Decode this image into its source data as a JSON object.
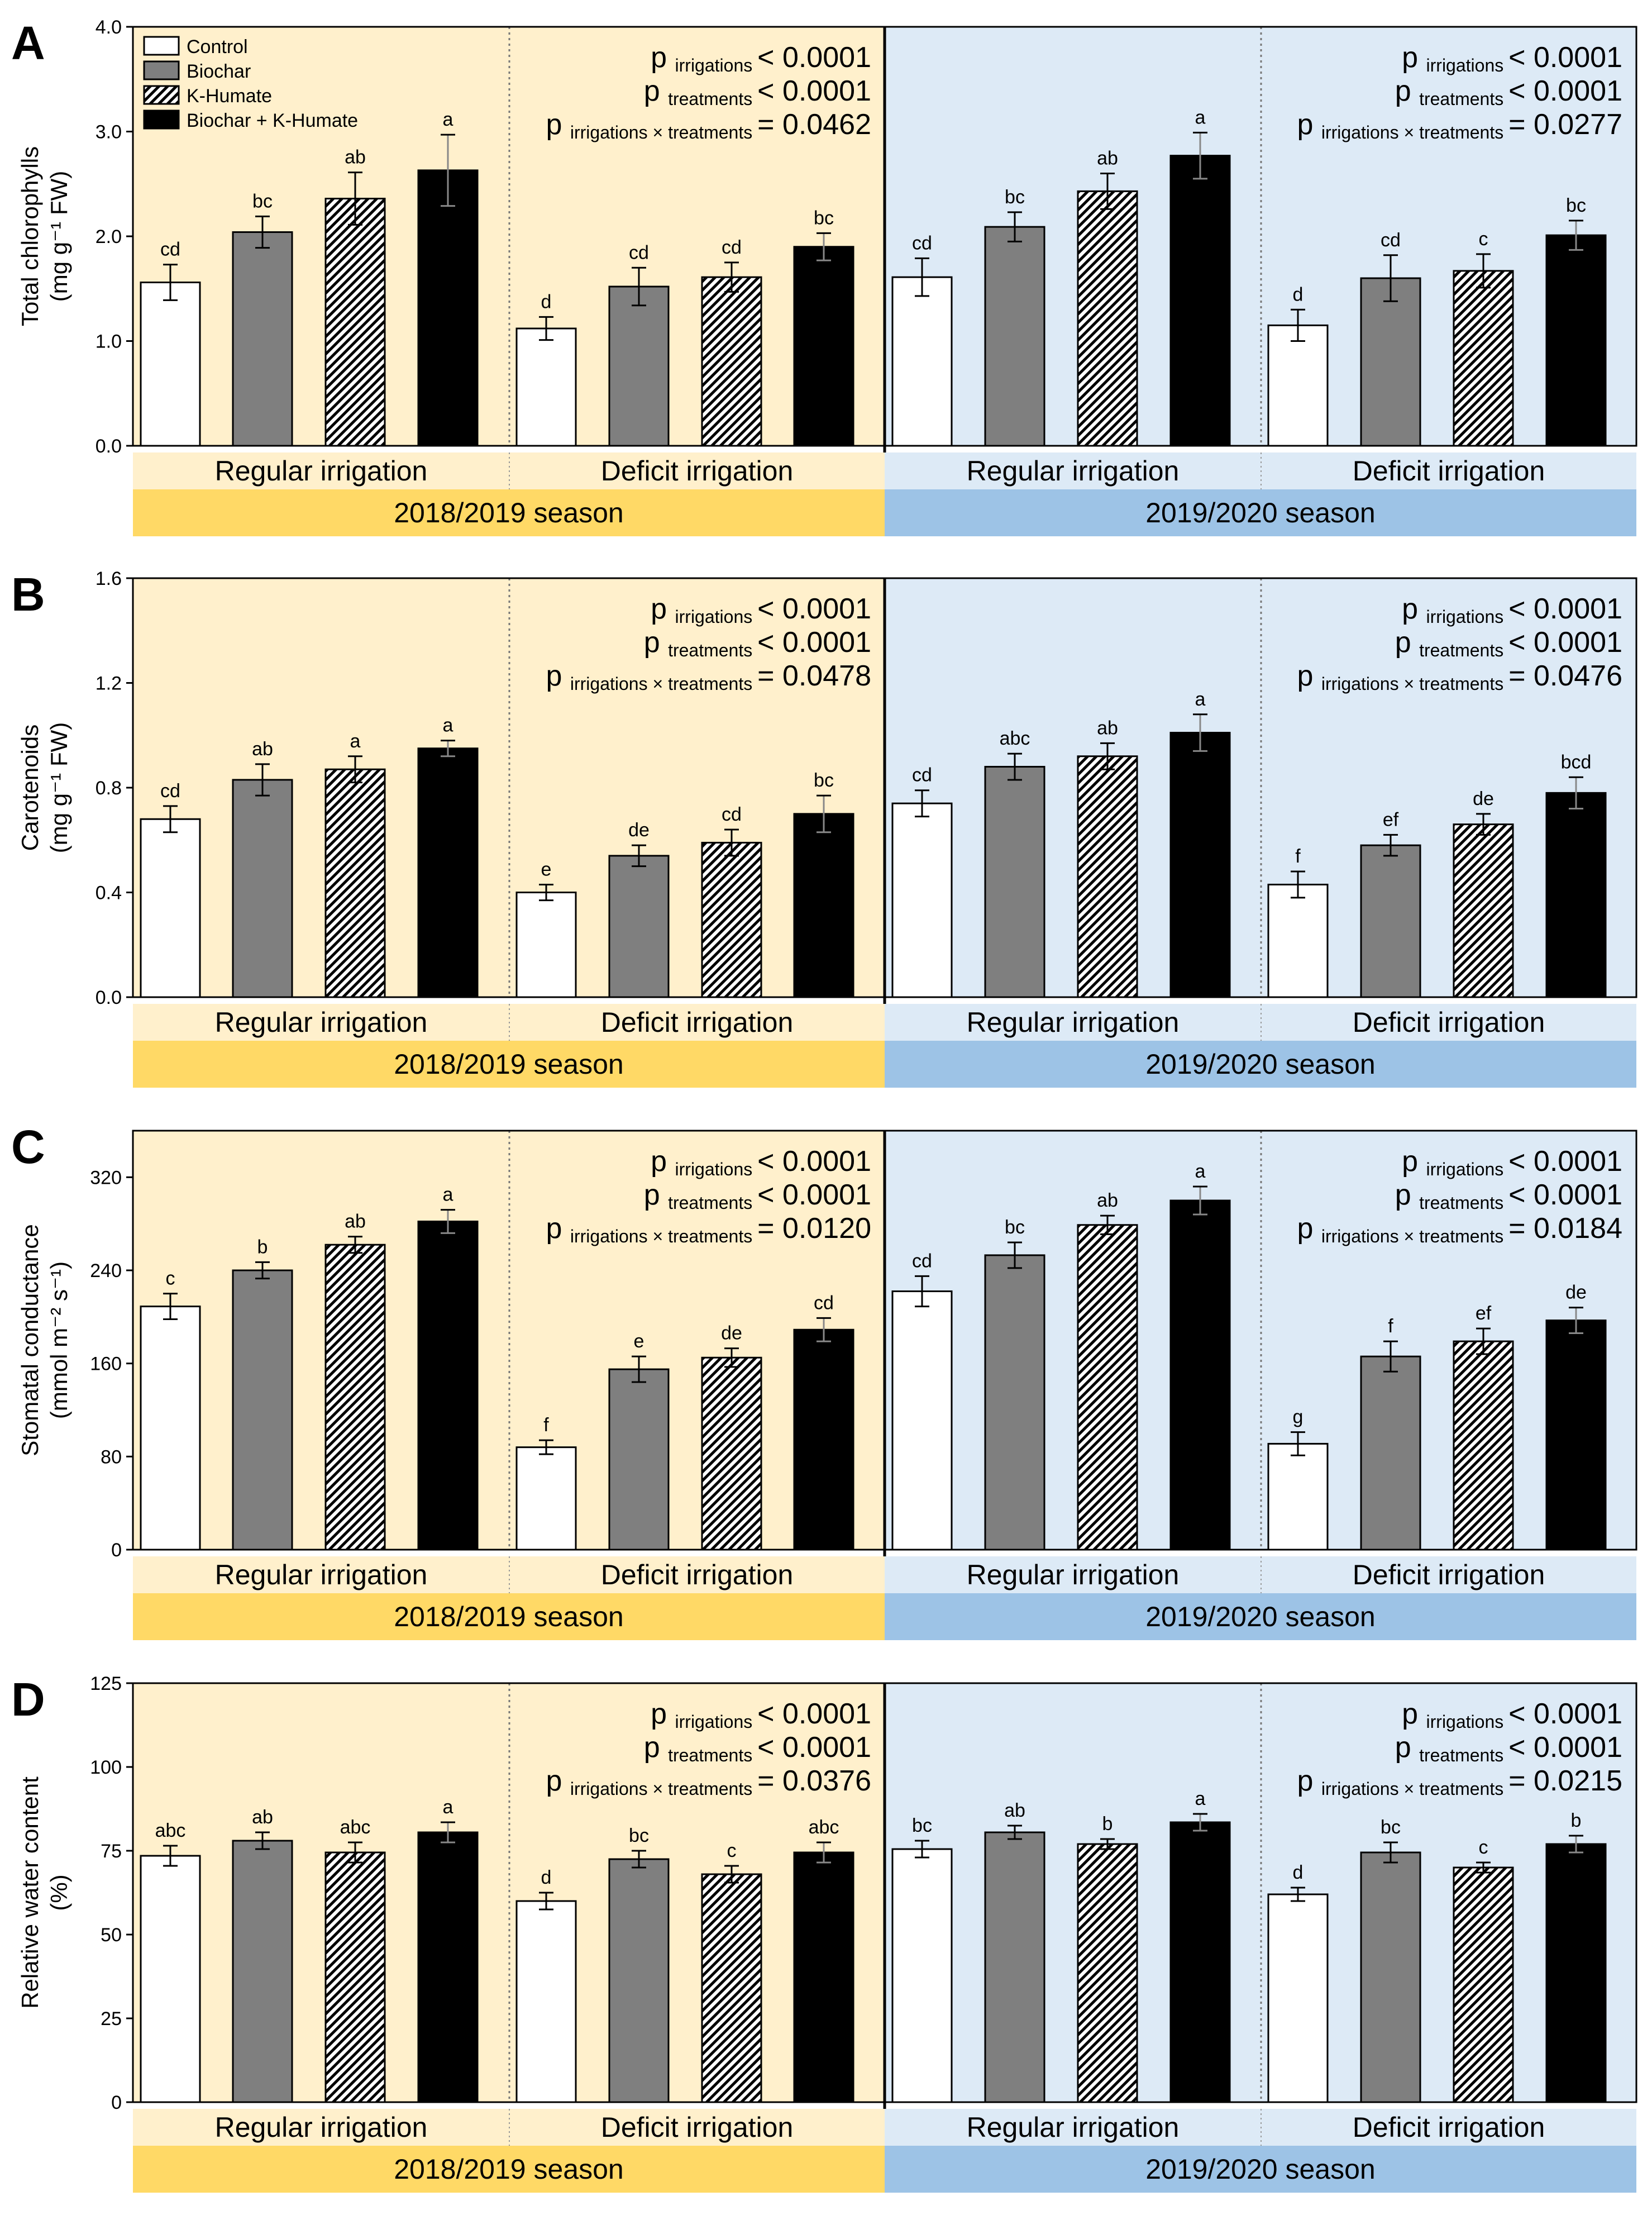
{
  "figure": {
    "legend": [
      {
        "label": "Control",
        "pattern": "white"
      },
      {
        "label": "Biochar",
        "pattern": "gray"
      },
      {
        "label": "K-Humate",
        "pattern": "hatch"
      },
      {
        "label": "Biochar + K-Humate",
        "pattern": "black"
      }
    ],
    "season_labels": [
      "2018/2019 season",
      "2019/2020 season"
    ],
    "irrigation_labels": [
      "Regular irrigation",
      "Deficit irrigation",
      "Regular irrigation",
      "Deficit irrigation"
    ],
    "stat_labels": {
      "p": "p",
      "irrigations": "irrigations",
      "treatments": "treatments",
      "interaction": "irrigations × treatments"
    },
    "colors": {
      "season1_bg": "#FFF0CC",
      "season2_bg": "#DDEAF6",
      "season1_strip_light": "#FFF0CC",
      "season1_strip_dark": "#FFD966",
      "season2_strip_light": "#DDEAF6",
      "season2_strip_dark": "#9DC3E6",
      "bar_white": "#FFFFFF",
      "bar_gray": "#7F7F7F",
      "bar_black": "#000000"
    }
  },
  "chart_data": [
    {
      "panel": "A",
      "type": "bar",
      "ylabel_line1": "Total chlorophylls",
      "ylabel_line2": "(mg g⁻¹ FW)",
      "ylim": [
        0,
        4.0
      ],
      "yticks": [
        "0.0",
        "1.0",
        "2.0",
        "3.0",
        "4.0"
      ],
      "ytick_values": [
        0,
        1,
        2,
        3,
        4
      ],
      "groups": [
        "2018/2019 Regular irrigation",
        "2018/2019 Deficit irrigation",
        "2019/2020 Regular irrigation",
        "2019/2020 Deficit irrigation"
      ],
      "series": [
        {
          "name": "Control",
          "values": [
            1.56,
            1.12,
            1.61,
            1.15
          ],
          "errors": [
            0.17,
            0.11,
            0.18,
            0.15
          ],
          "letters": [
            "cd",
            "d",
            "cd",
            "d"
          ]
        },
        {
          "name": "Biochar",
          "values": [
            2.04,
            1.52,
            2.09,
            1.6
          ],
          "errors": [
            0.15,
            0.18,
            0.14,
            0.22
          ],
          "letters": [
            "bc",
            "cd",
            "bc",
            "cd"
          ]
        },
        {
          "name": "K-Humate",
          "values": [
            2.36,
            1.61,
            2.43,
            1.67
          ],
          "errors": [
            0.25,
            0.14,
            0.17,
            0.16
          ],
          "letters": [
            "ab",
            "cd",
            "ab",
            "c"
          ]
        },
        {
          "name": "Biochar + K-Humate",
          "values": [
            2.63,
            1.9,
            2.77,
            2.01
          ],
          "errors": [
            0.34,
            0.13,
            0.22,
            0.14
          ],
          "letters": [
            "a",
            "bc",
            "a",
            "bc"
          ]
        }
      ],
      "stats": [
        {
          "irrigations": "< 0.0001",
          "treatments": "< 0.0001",
          "interaction": "= 0.0462"
        },
        {
          "irrigations": "< 0.0001",
          "treatments": "< 0.0001",
          "interaction": "= 0.0277"
        }
      ]
    },
    {
      "panel": "B",
      "type": "bar",
      "ylabel_line1": "Carotenoids",
      "ylabel_line2": "(mg g⁻¹ FW)",
      "ylim": [
        0,
        1.6
      ],
      "yticks": [
        "0.0",
        "0.4",
        "0.8",
        "1.2",
        "1.6"
      ],
      "ytick_values": [
        0,
        0.4,
        0.8,
        1.2,
        1.6
      ],
      "groups": [
        "2018/2019 Regular irrigation",
        "2018/2019 Deficit irrigation",
        "2019/2020 Regular irrigation",
        "2019/2020 Deficit irrigation"
      ],
      "series": [
        {
          "name": "Control",
          "values": [
            0.68,
            0.4,
            0.74,
            0.43
          ],
          "errors": [
            0.05,
            0.03,
            0.05,
            0.05
          ],
          "letters": [
            "cd",
            "e",
            "cd",
            "f"
          ]
        },
        {
          "name": "Biochar",
          "values": [
            0.83,
            0.54,
            0.88,
            0.58
          ],
          "errors": [
            0.06,
            0.04,
            0.05,
            0.04
          ],
          "letters": [
            "ab",
            "de",
            "abc",
            "ef"
          ]
        },
        {
          "name": "K-Humate",
          "values": [
            0.87,
            0.59,
            0.92,
            0.66
          ],
          "errors": [
            0.05,
            0.05,
            0.05,
            0.04
          ],
          "letters": [
            "a",
            "cd",
            "ab",
            "de"
          ]
        },
        {
          "name": "Biochar + K-Humate",
          "values": [
            0.95,
            0.7,
            1.01,
            0.78
          ],
          "errors": [
            0.03,
            0.07,
            0.07,
            0.06
          ],
          "letters": [
            "a",
            "bc",
            "a",
            "bcd"
          ]
        }
      ],
      "stats": [
        {
          "irrigations": "< 0.0001",
          "treatments": "< 0.0001",
          "interaction": "= 0.0478"
        },
        {
          "irrigations": "< 0.0001",
          "treatments": "< 0.0001",
          "interaction": "= 0.0476"
        }
      ]
    },
    {
      "panel": "C",
      "type": "bar",
      "ylabel_line1": "Stomatal conductance",
      "ylabel_line2": "(mmol m⁻² s⁻¹)",
      "ylim": [
        0,
        360
      ],
      "yticks": [
        "0",
        "80",
        "160",
        "240",
        "320"
      ],
      "ytick_values": [
        0,
        80,
        160,
        240,
        320
      ],
      "groups": [
        "2018/2019 Regular irrigation",
        "2018/2019 Deficit irrigation",
        "2019/2020 Regular irrigation",
        "2019/2020 Deficit irrigation"
      ],
      "series": [
        {
          "name": "Control",
          "values": [
            209,
            88,
            222,
            91
          ],
          "errors": [
            11,
            6,
            13,
            10
          ],
          "letters": [
            "c",
            "f",
            "cd",
            "g"
          ]
        },
        {
          "name": "Biochar",
          "values": [
            240,
            155,
            253,
            166
          ],
          "errors": [
            7,
            11,
            11,
            13
          ],
          "letters": [
            "b",
            "e",
            "bc",
            "f"
          ]
        },
        {
          "name": "K-Humate",
          "values": [
            262,
            165,
            279,
            179
          ],
          "errors": [
            7,
            8,
            8,
            11
          ],
          "letters": [
            "ab",
            "de",
            "ab",
            "ef"
          ]
        },
        {
          "name": "Biochar + K-Humate",
          "values": [
            282,
            189,
            300,
            197
          ],
          "errors": [
            10,
            10,
            12,
            11
          ],
          "letters": [
            "a",
            "cd",
            "a",
            "de"
          ]
        }
      ],
      "stats": [
        {
          "irrigations": "< 0.0001",
          "treatments": "< 0.0001",
          "interaction": "= 0.0120"
        },
        {
          "irrigations": "< 0.0001",
          "treatments": "< 0.0001",
          "interaction": "= 0.0184"
        }
      ]
    },
    {
      "panel": "D",
      "type": "bar",
      "ylabel_line1": "Relative water content",
      "ylabel_line2": "(%)",
      "ylim": [
        0,
        125
      ],
      "yticks": [
        "0",
        "25",
        "50",
        "75",
        "100",
        "125"
      ],
      "ytick_values": [
        0,
        25,
        50,
        75,
        100,
        125
      ],
      "groups": [
        "2018/2019 Regular irrigation",
        "2018/2019 Deficit irrigation",
        "2019/2020 Regular irrigation",
        "2019/2020 Deficit irrigation"
      ],
      "series": [
        {
          "name": "Control",
          "values": [
            73.5,
            60,
            75.5,
            62
          ],
          "errors": [
            3,
            2.5,
            2.5,
            2
          ],
          "letters": [
            "abc",
            "d",
            "bc",
            "d"
          ]
        },
        {
          "name": "Biochar",
          "values": [
            78,
            72.5,
            80.5,
            74.5
          ],
          "errors": [
            2.5,
            2.5,
            2,
            3
          ],
          "letters": [
            "ab",
            "bc",
            "ab",
            "bc"
          ]
        },
        {
          "name": "K-Humate",
          "values": [
            74.5,
            68,
            77,
            70
          ],
          "errors": [
            3,
            2.5,
            1.5,
            1.5
          ],
          "letters": [
            "abc",
            "c",
            "b",
            "c"
          ]
        },
        {
          "name": "Biochar + K-Humate",
          "values": [
            80.5,
            74.5,
            83.5,
            77
          ],
          "errors": [
            3,
            3,
            2.5,
            2.5
          ],
          "letters": [
            "a",
            "abc",
            "a",
            "b"
          ]
        }
      ],
      "stats": [
        {
          "irrigations": "< 0.0001",
          "treatments": "< 0.0001",
          "interaction": "= 0.0376"
        },
        {
          "irrigations": "< 0.0001",
          "treatments": "< 0.0001",
          "interaction": "= 0.0215"
        }
      ]
    }
  ]
}
